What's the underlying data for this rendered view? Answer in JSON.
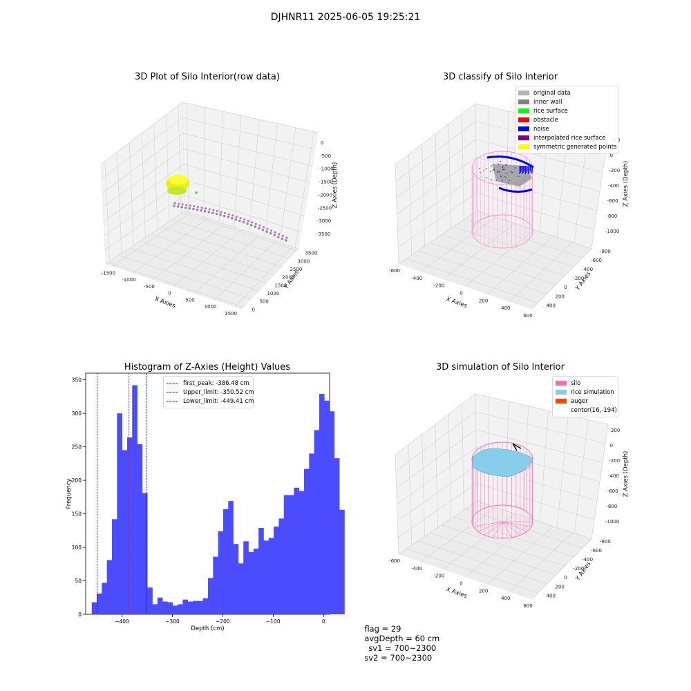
{
  "suptitle": "DJHNR11 2025-06-05 19:25:21",
  "panels": {
    "raw": {
      "title": "3D Plot of Silo Interior(row data)",
      "x_label": "X Axies",
      "y_label": "Y Axies",
      "z_label": "Z Axies (Depth)",
      "x_ticks": [
        "-1500",
        "-1000",
        "-500",
        "0",
        "500",
        "1000",
        "1500"
      ],
      "y_ticks": [
        "0",
        "500",
        "1000",
        "1500",
        "2000",
        "2500",
        "3000",
        "3500"
      ],
      "z_ticks": [
        "0",
        "-500",
        "-1000",
        "-1500",
        "-2000",
        "-2500",
        "-3000",
        "-3500"
      ]
    },
    "classify": {
      "title": "3D classify of Silo Interior",
      "x_label": "X Axies",
      "y_label": "Y Axies",
      "z_label": "Z Axies (Depth)",
      "x_ticks": [
        "-600",
        "-400",
        "-200",
        "0",
        "200",
        "400",
        "600"
      ],
      "y_ticks": [
        "-800",
        "-600",
        "-400",
        "-200",
        "0",
        "200",
        "400"
      ],
      "z_ticks": [
        "200",
        "0",
        "-200",
        "-400",
        "-600",
        "-800",
        "-1000"
      ],
      "legend": [
        {
          "label": "original data",
          "color": "#b3b3b3"
        },
        {
          "label": "inner wall",
          "color": "#808080"
        },
        {
          "label": "rice surface",
          "color": "#00ff00"
        },
        {
          "label": "obstacle",
          "color": "#ff0000"
        },
        {
          "label": "noise",
          "color": "#0000ff"
        },
        {
          "label": "interpolated rice surface",
          "color": "#800080"
        },
        {
          "label": "symmetric generated points",
          "color": "#ffff00"
        }
      ]
    },
    "simulation": {
      "title": "3D simulation of Silo Interior",
      "x_label": "X Axies",
      "y_label": "Y Axies",
      "z_label": "Z Axies (Depth)",
      "x_ticks": [
        "-600",
        "-400",
        "-200",
        "0",
        "200",
        "400",
        "600"
      ],
      "y_ticks": [
        "-800",
        "-600",
        "-400",
        "-200",
        "0",
        "200",
        "400"
      ],
      "z_ticks": [
        "200",
        "0",
        "-200",
        "-400",
        "-600",
        "-800",
        "-1000"
      ],
      "legend": [
        {
          "label": "silo",
          "color": "#ff69b4"
        },
        {
          "label": "rice simulation",
          "color": "#87ceeb"
        },
        {
          "label": "auger",
          "color": "#ff4500"
        },
        {
          "label": "center(16,-194)",
          "color": ""
        }
      ]
    }
  },
  "chart_data": {
    "type": "bar",
    "title": "Histogram of Z-Axies (Height) Values",
    "xlabel": "Depth (cm)",
    "ylabel": "Frequency",
    "xlim": [
      -472,
      12
    ],
    "ylim": [
      0,
      360
    ],
    "x_ticks": [
      -400,
      -300,
      -200,
      -100,
      0
    ],
    "y_ticks": [
      0,
      50,
      100,
      150,
      200,
      250,
      300,
      350
    ],
    "bar_color": "#4c4cff",
    "bins": {
      "start": -460,
      "width": 10.03,
      "counts": [
        18,
        31,
        47,
        81,
        142,
        300,
        245,
        264,
        342,
        254,
        181,
        40,
        15,
        25,
        19,
        18,
        13,
        15,
        22,
        19,
        20,
        20,
        24,
        54,
        86,
        124,
        157,
        169,
        105,
        76,
        109,
        93,
        98,
        129,
        110,
        114,
        131,
        143,
        178,
        178,
        189,
        184,
        217,
        240,
        275,
        329,
        319,
        303,
        233,
        156
      ]
    },
    "vlines": [
      {
        "x": -386.48,
        "label": "first_peak: -386.48 cm",
        "color": "#ff0000"
      },
      {
        "x": -350.52,
        "label": "Upper_limit: -350.52 cm",
        "color": "#0000ff"
      },
      {
        "x": -449.41,
        "label": "Lower_limit: -449.41 cm",
        "color": "#0000ff"
      }
    ]
  },
  "footer": {
    "flag": "flag = 29",
    "avg_depth": "avgDepth = 60 cm",
    "sv1": "sv1 = 700~2300",
    "sv2": "sv2 = 700~2300"
  }
}
